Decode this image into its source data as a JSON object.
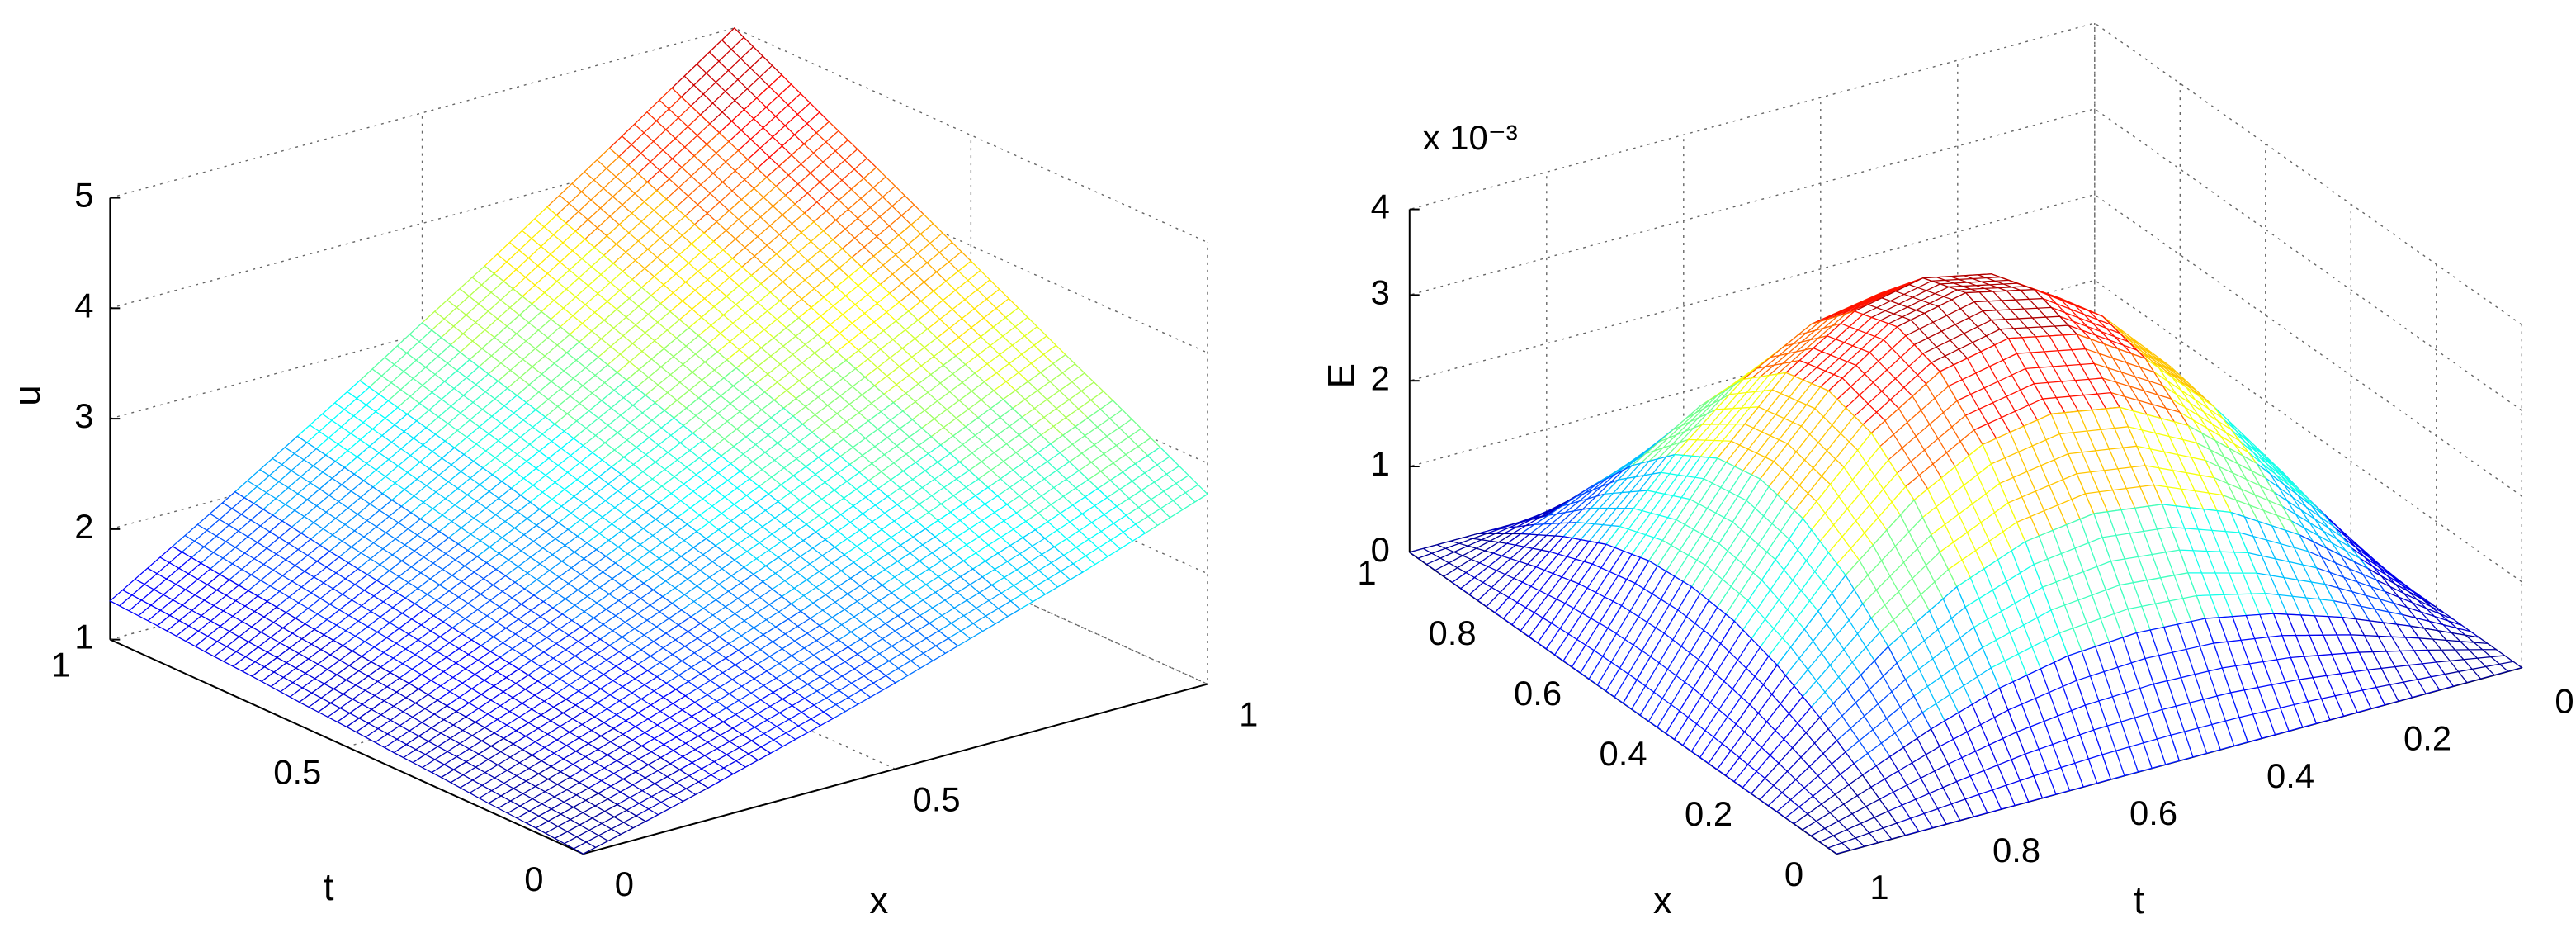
{
  "chart_data": [
    {
      "type": "surface",
      "colormap": "jet",
      "grid": true,
      "xlabel": "x",
      "ylabel": "t",
      "zlabel": "u",
      "x": [
        0,
        0.1,
        0.2,
        0.3,
        0.4,
        0.5,
        0.6,
        0.7,
        0.8,
        0.9,
        1
      ],
      "y": [
        0,
        0.1,
        0.2,
        0.3,
        0.4,
        0.5,
        0.6,
        0.7,
        0.8,
        0.9,
        1
      ],
      "z": [
        [
          1,
          1.14,
          1.29,
          1.45,
          1.61,
          1.78,
          1.96,
          2.14,
          2.32,
          2.52,
          2.72
        ],
        [
          1.04,
          1.2,
          1.37,
          1.54,
          1.72,
          1.91,
          2.11,
          2.31,
          2.51,
          2.73,
          2.95
        ],
        [
          1.07,
          1.25,
          1.44,
          1.64,
          1.84,
          2.04,
          2.26,
          2.48,
          2.7,
          2.94,
          3.18
        ],
        [
          1.11,
          1.31,
          1.51,
          1.73,
          1.95,
          2.18,
          2.41,
          2.65,
          2.89,
          3.15,
          3.4
        ],
        [
          1.14,
          1.36,
          1.59,
          1.82,
          2.06,
          2.31,
          2.56,
          2.82,
          3.08,
          3.35,
          3.63
        ],
        [
          1.18,
          1.42,
          1.66,
          1.91,
          2.17,
          2.44,
          2.71,
          2.99,
          3.27,
          3.56,
          3.86
        ],
        [
          1.21,
          1.47,
          1.74,
          2.01,
          2.28,
          2.57,
          2.86,
          3.16,
          3.46,
          3.77,
          4.09
        ],
        [
          1.25,
          1.52,
          1.81,
          2.1,
          2.4,
          2.7,
          3.01,
          3.33,
          3.65,
          3.98,
          4.32
        ],
        [
          1.28,
          1.58,
          1.88,
          2.19,
          2.51,
          2.83,
          3.16,
          3.5,
          3.84,
          4.19,
          4.54
        ],
        [
          1.32,
          1.63,
          1.96,
          2.29,
          2.62,
          2.96,
          3.31,
          3.67,
          4.03,
          4.4,
          4.77
        ],
        [
          1.35,
          1.69,
          2.03,
          2.38,
          2.73,
          3.1,
          3.46,
          3.84,
          4.22,
          4.61,
          5
        ]
      ],
      "xlim": [
        0,
        1
      ],
      "ylim": [
        0,
        1
      ],
      "zlim": [
        1,
        5
      ],
      "xticks": [
        0,
        0.5,
        1
      ],
      "yticks": [
        0,
        0.5,
        1
      ],
      "zticks": [
        1,
        2,
        3,
        4,
        5
      ]
    },
    {
      "type": "surface",
      "colormap": "jet",
      "grid": true,
      "xlabel": "x",
      "ylabel": "t",
      "zlabel": "E",
      "z_scale_label": "x 10⁻³",
      "x": [
        0,
        0.1,
        0.2,
        0.3,
        0.4,
        0.5,
        0.6,
        0.7,
        0.8,
        0.9,
        1
      ],
      "y": [
        0,
        0.1,
        0.2,
        0.3,
        0.4,
        0.5,
        0.6,
        0.7,
        0.8,
        0.9,
        1
      ],
      "z": [
        [
          0,
          0,
          0,
          0,
          0,
          0,
          0,
          0,
          0,
          0,
          0
        ],
        [
          0,
          0.35,
          0.67,
          0.93,
          1.09,
          1.14,
          1.09,
          0.93,
          0.67,
          0.35,
          0
        ],
        [
          0,
          0.67,
          1.28,
          1.76,
          2.07,
          2.18,
          2.07,
          1.76,
          1.28,
          0.67,
          0
        ],
        [
          0,
          0.93,
          1.76,
          2.42,
          2.85,
          2.99,
          2.85,
          2.42,
          1.76,
          0.93,
          0
        ],
        [
          0,
          1.09,
          2.07,
          2.85,
          3.35,
          3.52,
          3.35,
          2.85,
          2.07,
          1.09,
          0
        ],
        [
          0,
          1.14,
          2.18,
          2.99,
          3.52,
          3.7,
          3.52,
          2.99,
          2.18,
          1.14,
          0
        ],
        [
          0,
          1.09,
          2.07,
          2.85,
          3.35,
          3.52,
          3.35,
          2.85,
          2.07,
          1.09,
          0
        ],
        [
          0,
          0.93,
          1.76,
          2.42,
          2.85,
          2.99,
          2.85,
          2.42,
          1.76,
          0.93,
          0
        ],
        [
          0,
          0.67,
          1.28,
          1.76,
          2.07,
          2.18,
          2.07,
          1.76,
          1.28,
          0.67,
          0
        ],
        [
          0,
          0.35,
          0.67,
          0.93,
          1.09,
          1.14,
          1.09,
          0.93,
          0.67,
          0.35,
          0
        ],
        [
          0,
          0,
          0,
          0,
          0,
          0,
          0,
          0,
          0,
          0,
          0
        ]
      ],
      "xlim": [
        0,
        1
      ],
      "ylim": [
        0,
        1
      ],
      "zlim": [
        0,
        4
      ],
      "xticks": [
        0,
        0.2,
        0.4,
        0.6,
        0.8,
        1
      ],
      "yticks": [
        0,
        0.2,
        0.4,
        0.6,
        0.8,
        1
      ],
      "zticks": [
        0,
        1,
        2,
        3,
        4
      ]
    }
  ]
}
